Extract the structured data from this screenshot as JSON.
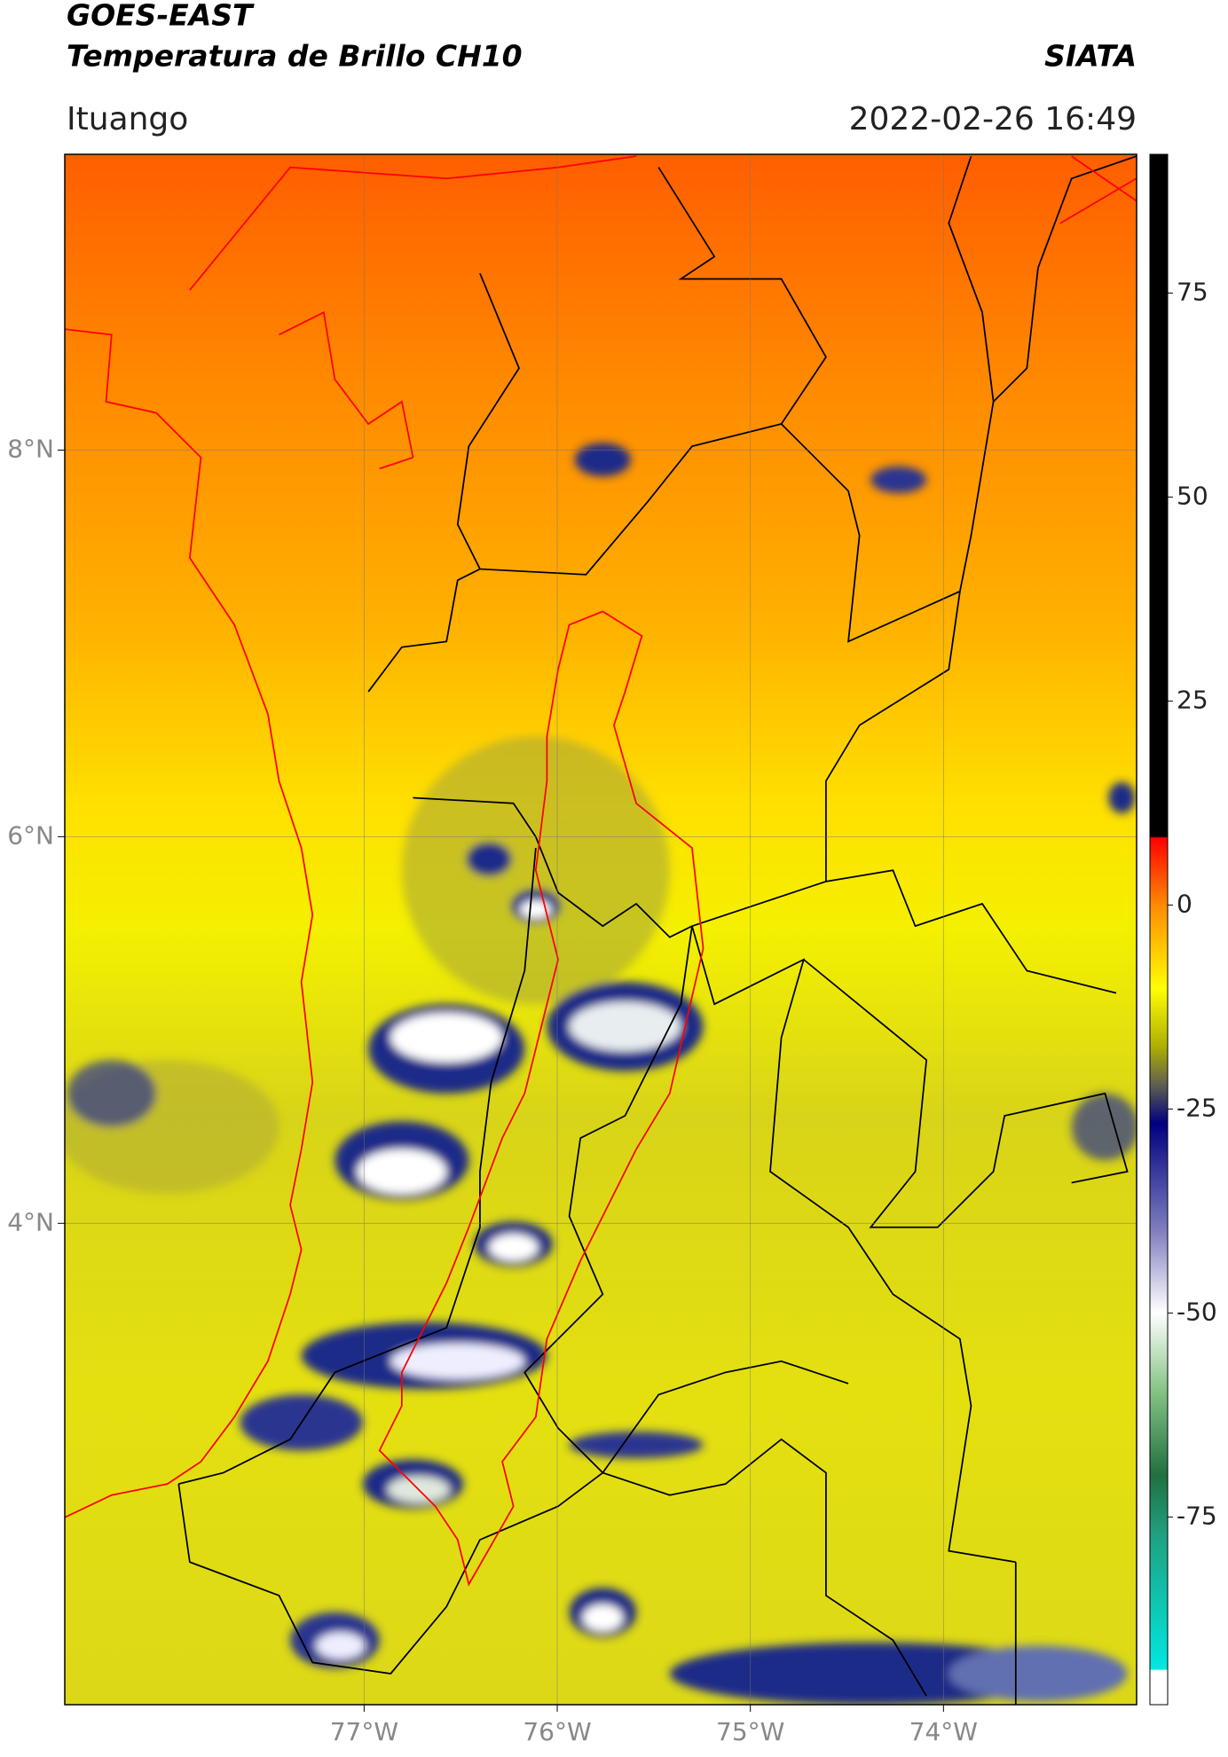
{
  "chart_data": {
    "type": "map",
    "title": "GOES-EAST",
    "subtitle": "Temperatura de Brillo CH10",
    "source": "SIATA",
    "region": "Ituango",
    "timestamp": "2022-02-26 16:49",
    "xlim": [
      -78.55,
      -73.0
    ],
    "xticks": [
      {
        "value": -77,
        "label": "77°W"
      },
      {
        "value": -76,
        "label": "76°W"
      },
      {
        "value": -75,
        "label": "75°W"
      },
      {
        "value": -74,
        "label": "74°W"
      }
    ],
    "ylim": [
      1.51,
      9.53
    ],
    "yticks": [
      {
        "value": 8,
        "label": "8°N"
      },
      {
        "value": 6,
        "label": "6°N"
      },
      {
        "value": 4,
        "label": "4°N"
      }
    ],
    "grid": true,
    "colorbar": {
      "clim": [
        -98,
        92
      ],
      "ticks": [
        75,
        50,
        25,
        0,
        -25,
        -50,
        -75
      ]
    }
  }
}
